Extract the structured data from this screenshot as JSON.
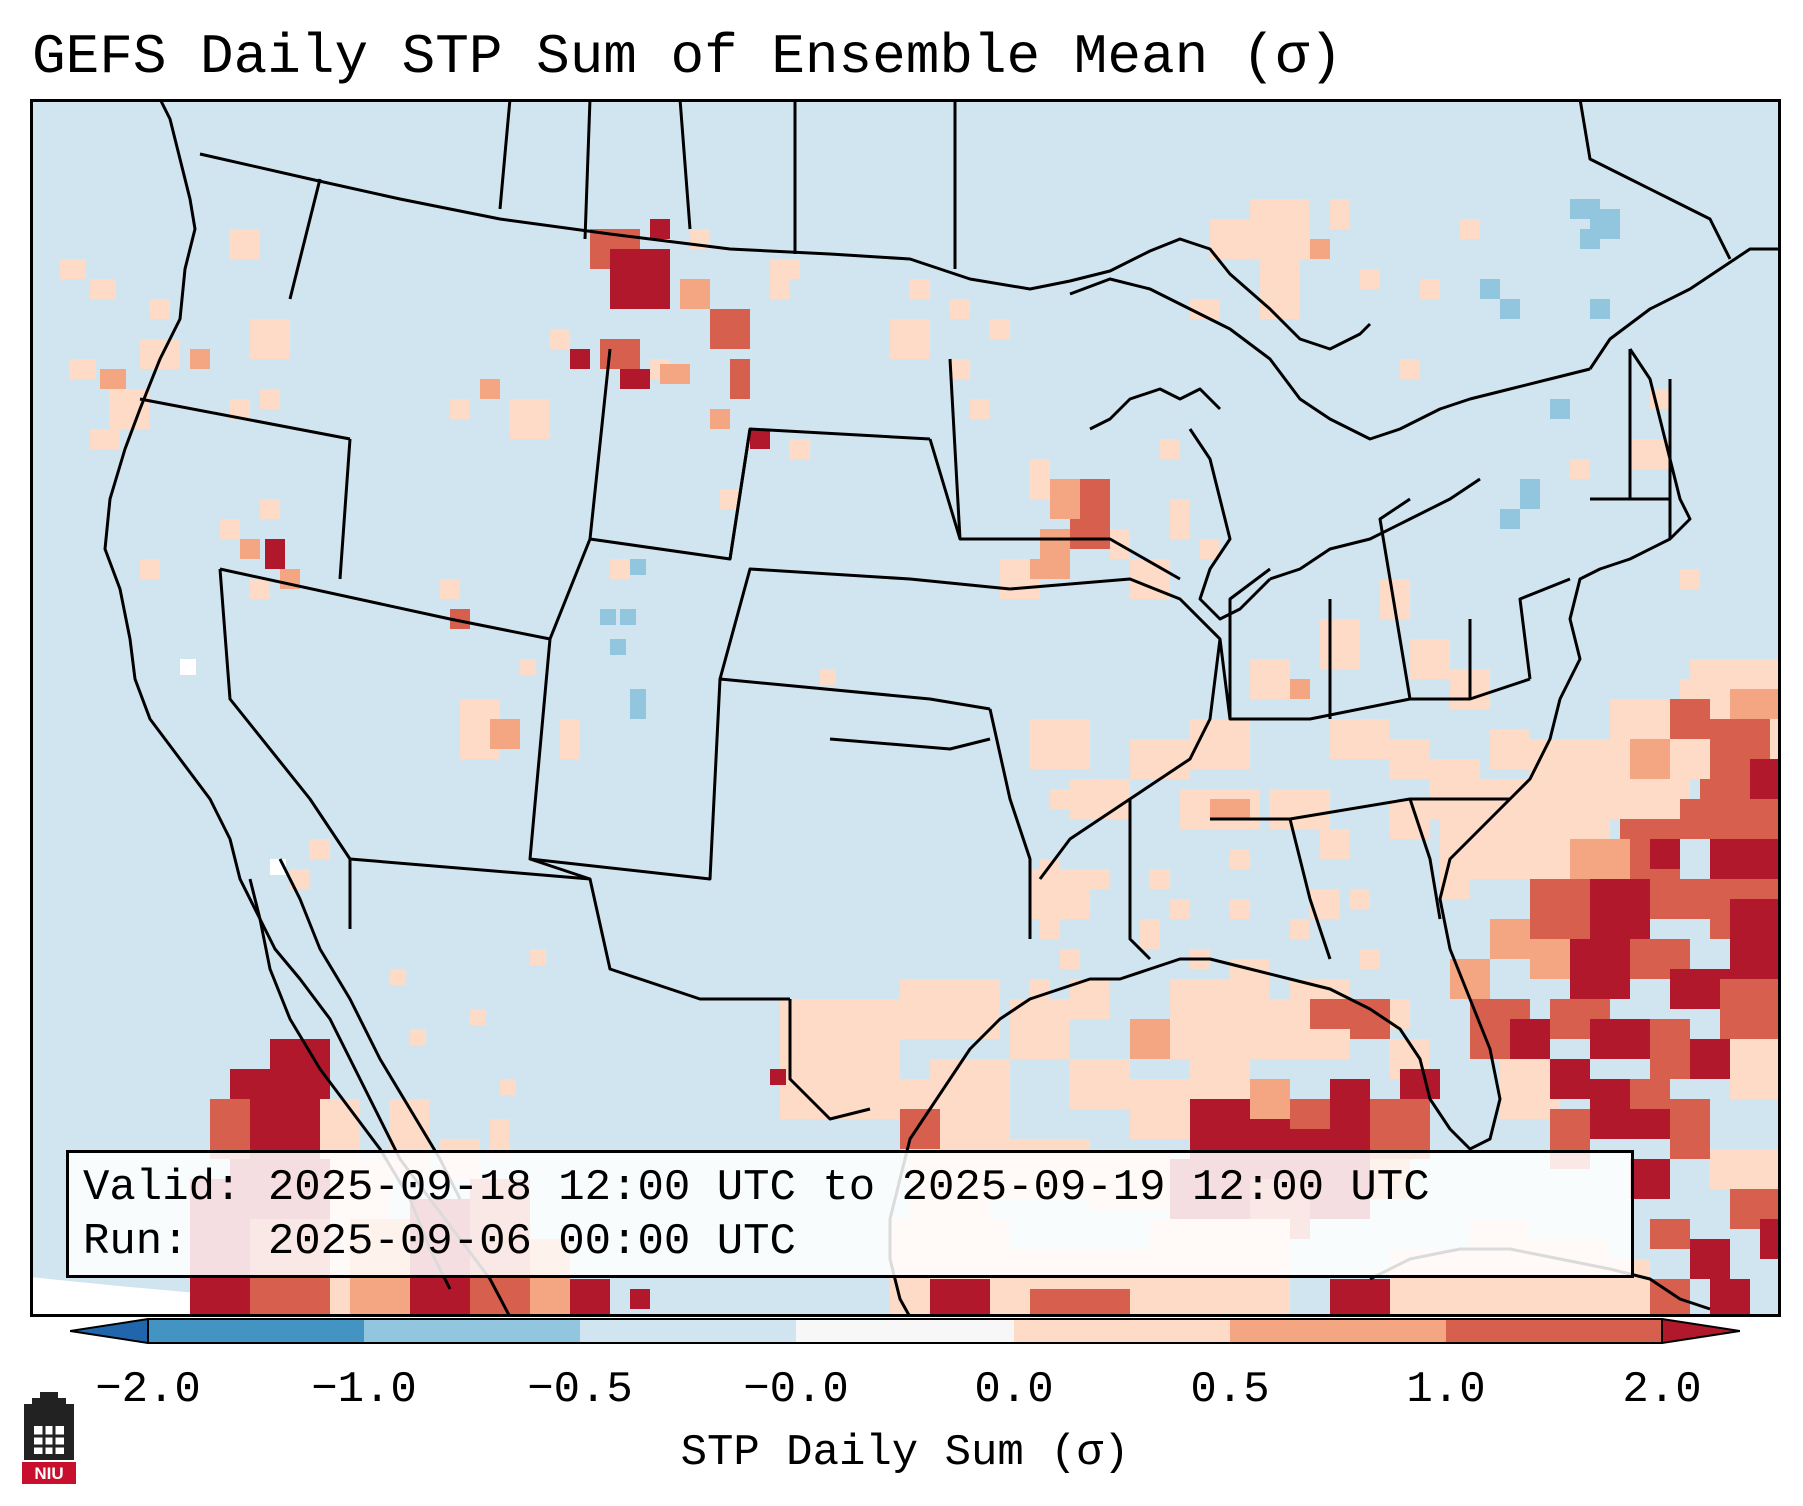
{
  "title": "GEFS Daily STP Sum of Ensemble Mean (σ)",
  "map": {
    "projection": "Lambert Conformal (CONUS)",
    "background_color": "#d1e5f0",
    "ocean_edge_color": "#ffffff"
  },
  "info_box": {
    "valid_line": "Valid: 2025-09-18 12:00 UTC to 2025-09-19 12:00 UTC",
    "run_line": "Run:   2025-09-06 00:00 UTC"
  },
  "colorbar": {
    "label": "STP Daily Sum (σ)",
    "ticks": [
      "−2.0",
      "−1.0",
      "−0.5",
      "−0.0",
      "0.0",
      "0.5",
      "1.0",
      "2.0"
    ],
    "colors": [
      "#2166ac",
      "#4393c3",
      "#92c5de",
      "#d1e5f0",
      "#f7f7f7",
      "#fddbc7",
      "#f4a582",
      "#d6604d",
      "#b2182b"
    ]
  },
  "logo": {
    "text": "NIU"
  }
}
